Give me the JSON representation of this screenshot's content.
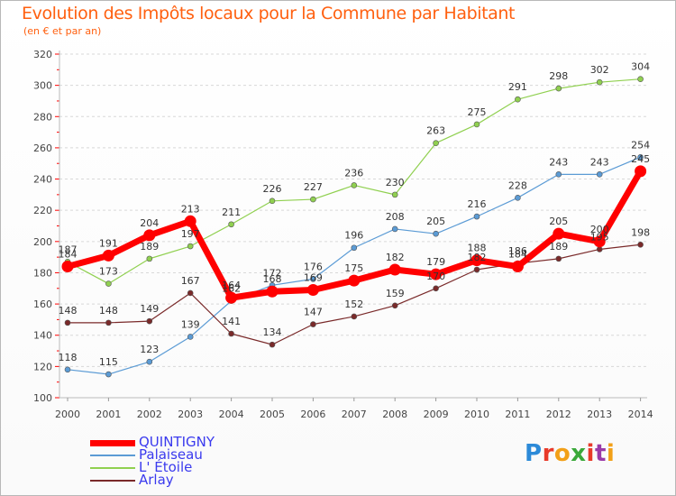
{
  "header": {
    "title": "Evolution des Impôts locaux pour la Commune par Habitant",
    "subtitle": "(en € et par an)"
  },
  "brand": {
    "logo_text": "Proxiti"
  },
  "chart_data": {
    "type": "line",
    "x": [
      2000,
      2001,
      2002,
      2003,
      2004,
      2005,
      2006,
      2007,
      2008,
      2009,
      2010,
      2011,
      2012,
      2013,
      2014
    ],
    "ylim": [
      100,
      320
    ],
    "yticks": [
      100,
      120,
      140,
      160,
      180,
      200,
      220,
      240,
      260,
      280,
      300,
      320
    ],
    "grid": "horizontal dashed",
    "legend_position": "bottom-left",
    "series": [
      {
        "name": "QUINTIGNY",
        "color": "#ff0000",
        "values": [
          184,
          191,
          204,
          213,
          164,
          168,
          169,
          175,
          182,
          179,
          188,
          184,
          205,
          200,
          245
        ],
        "labels": [
          "184",
          "191",
          "204",
          "213",
          "164",
          "168",
          "169",
          "175",
          "182",
          "179",
          "188",
          "184",
          "205",
          "200",
          "245"
        ]
      },
      {
        "name": "Palaiseau",
        "color": "#5b9bd5",
        "values": [
          118,
          115,
          123,
          139,
          162,
          172,
          176,
          196,
          208,
          205,
          216,
          228,
          243,
          243,
          254
        ],
        "labels": [
          "118",
          "115",
          "123",
          "139",
          "162",
          "172",
          "176",
          "196",
          "208",
          "205",
          "216",
          "228",
          "243",
          "243",
          "254"
        ]
      },
      {
        "name": "L' Étoile",
        "color": "#90d050",
        "values": [
          187,
          173,
          189,
          197,
          211,
          226,
          227,
          236,
          230,
          263,
          275,
          291,
          298,
          302,
          304
        ],
        "labels": [
          "187",
          "173",
          "189",
          "197",
          "211",
          "226",
          "227",
          "236",
          "230",
          "263",
          "275",
          "291",
          "298",
          "302",
          "304"
        ]
      },
      {
        "name": "Arlay",
        "color": "#7a2a2a",
        "values": [
          148,
          148,
          149,
          167,
          141,
          134,
          147,
          152,
          159,
          170,
          182,
          186,
          189,
          195,
          198
        ],
        "labels": [
          "148",
          "148",
          "149",
          "167",
          "141",
          "134",
          "147",
          "152",
          "159",
          "170",
          "182",
          "186",
          "189",
          "195",
          "198"
        ]
      }
    ]
  }
}
